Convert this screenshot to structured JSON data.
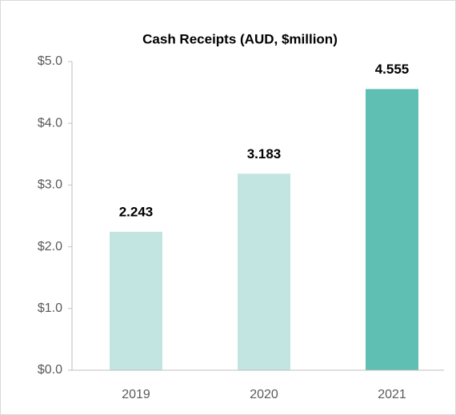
{
  "chart_data": {
    "type": "bar",
    "title": "Cash Receipts (AUD, $million)",
    "categories": [
      "2019",
      "2020",
      "2021"
    ],
    "values": [
      2.243,
      3.183,
      4.555
    ],
    "colors": [
      "#c2e5e1",
      "#c2e5e1",
      "#5fbfb3"
    ],
    "ylim": [
      0,
      5
    ],
    "yticks": [
      {
        "value": 0,
        "label": "$0.0"
      },
      {
        "value": 1,
        "label": "$1.0"
      },
      {
        "value": 2,
        "label": "$2.0"
      },
      {
        "value": 3,
        "label": "$3.0"
      },
      {
        "value": 4,
        "label": "$4.0"
      },
      {
        "value": 5,
        "label": "$5.0"
      }
    ],
    "grid": false
  }
}
